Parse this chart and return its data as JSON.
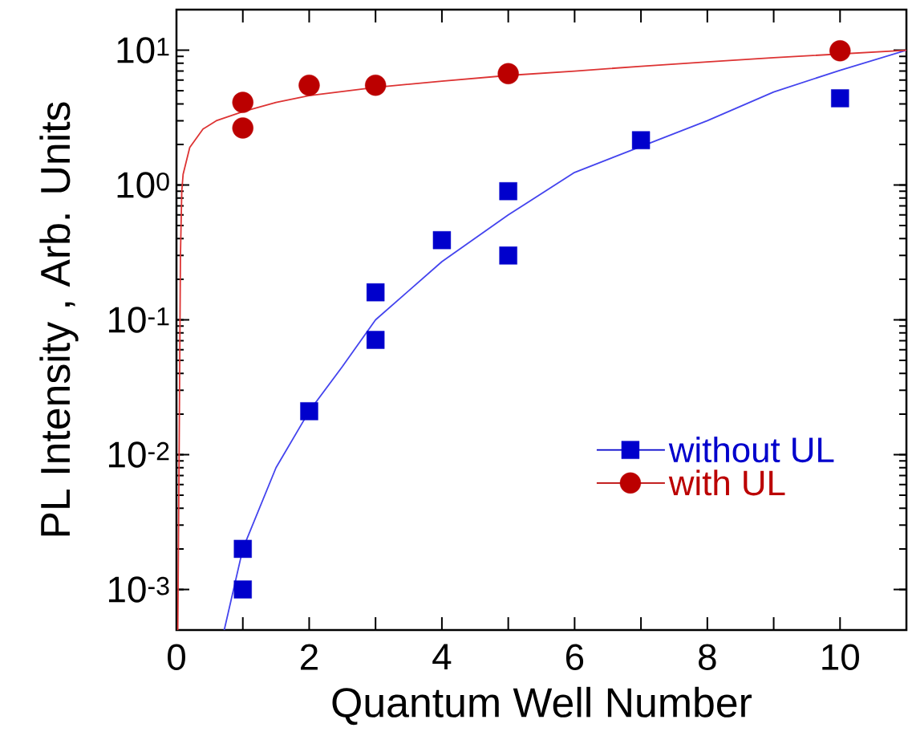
{
  "chart_data": {
    "type": "scatter",
    "xlabel": "Quantum Well Number",
    "ylabel": "PL Intensity , Arb. Units",
    "log": "y",
    "xlim": [
      0,
      11
    ],
    "ylim": [
      0.0005,
      20
    ],
    "xticks": [
      0,
      {
        "value": 1,
        "label": null
      },
      2,
      {
        "value": 3,
        "label": null
      },
      4,
      {
        "value": 5,
        "label": null
      },
      6,
      {
        "value": 7,
        "label": null
      },
      8,
      {
        "value": 9,
        "label": null
      },
      10
    ],
    "yticks": [
      {
        "value": 0.001,
        "label": "10$^{-3}$"
      },
      {
        "value": 0.01,
        "label": "10$^{-2}$"
      },
      {
        "value": 0.1,
        "label": "10$^{-1}$"
      },
      {
        "value": 1,
        "label": "10$^{0}$"
      },
      {
        "value": 10,
        "label": "10$^{1}$"
      }
    ],
    "grid": false,
    "legend": "bottom right",
    "series": [
      {
        "type": "line",
        "color": "#4444ee",
        "marker": "none",
        "x": [
          0.72,
          1,
          1.5,
          2,
          2.5,
          3,
          4,
          5,
          6,
          8,
          9,
          10,
          11
        ],
        "values": [
          0.0005,
          0.002,
          0.008,
          0.021,
          0.045,
          0.1,
          0.27,
          0.6,
          1.24,
          3.0,
          4.9,
          7.1,
          10
        ]
      },
      {
        "type": "line",
        "color": "#dd3333",
        "marker": "none",
        "x": [
          0.02,
          0.04,
          0.06,
          0.08,
          0.1,
          0.2,
          0.4,
          0.6,
          1,
          1.5,
          2,
          3,
          4,
          5,
          6,
          7,
          8,
          9,
          11
        ],
        "values": [
          0.0005,
          0.01,
          0.3,
          0.9,
          1.2,
          1.9,
          2.6,
          3.0,
          3.5,
          4.1,
          4.6,
          5.3,
          5.9,
          6.5,
          7.0,
          7.6,
          8.2,
          8.8,
          10
        ]
      },
      {
        "name": "without UL",
        "color": "#0000cc",
        "marker": "square",
        "x": [
          1,
          1,
          2,
          3,
          3,
          4,
          5,
          5,
          7,
          10
        ],
        "values": [
          0.002,
          0.001,
          0.021,
          0.071,
          0.16,
          0.39,
          0.3,
          0.9,
          2.15,
          4.4
        ]
      },
      {
        "name": "with UL",
        "color": "#bb0000",
        "marker": "circle",
        "x": [
          1,
          1,
          2,
          3,
          5,
          10
        ],
        "values": [
          4.1,
          2.65,
          5.5,
          5.5,
          6.7,
          9.9
        ]
      }
    ]
  }
}
